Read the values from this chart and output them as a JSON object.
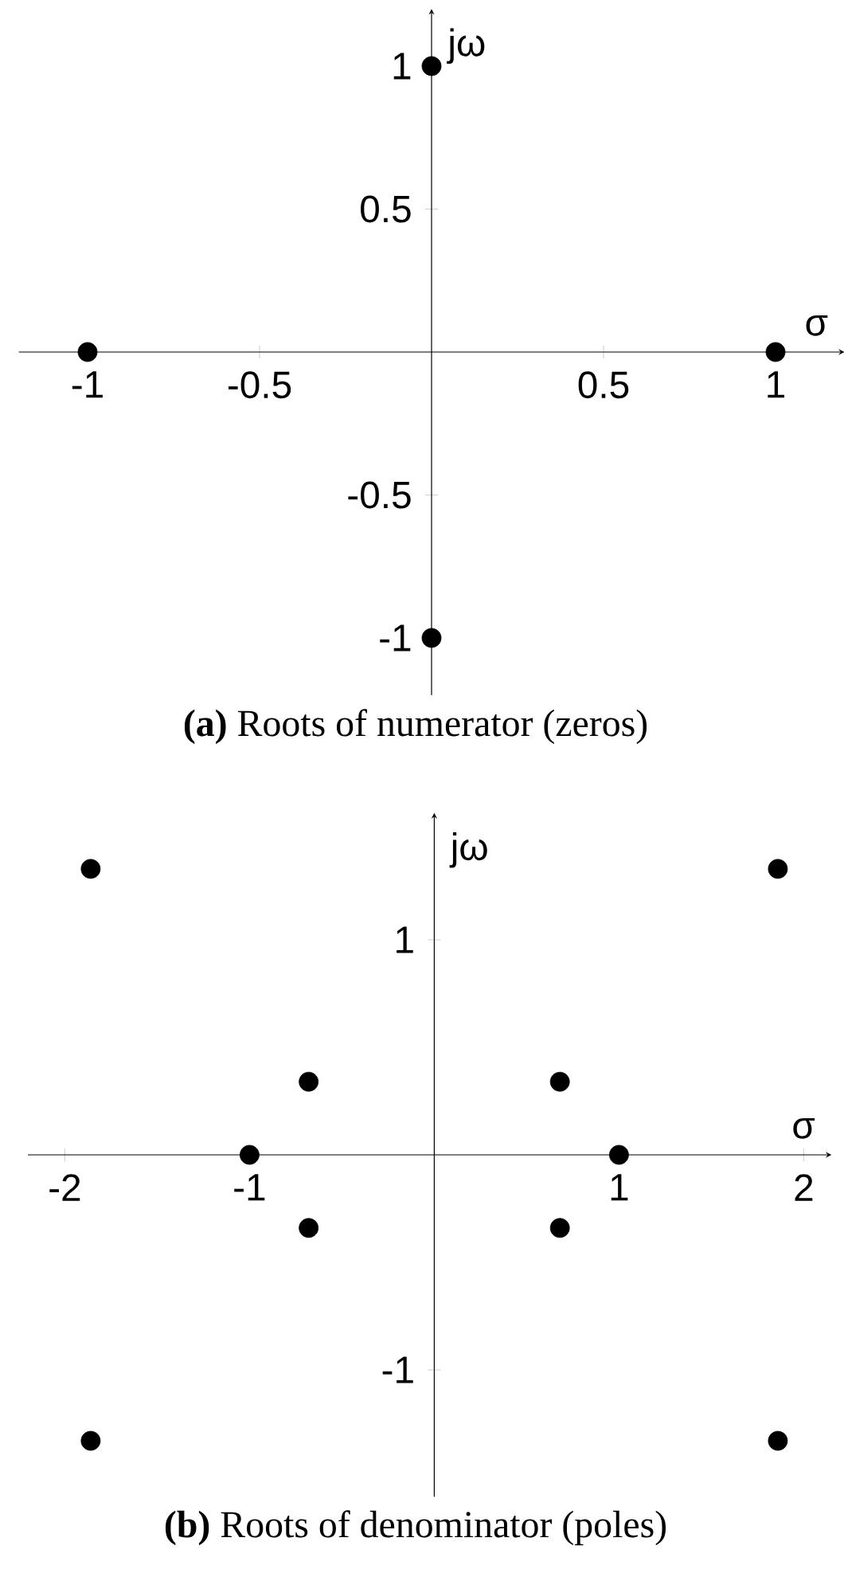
{
  "chart_data": [
    {
      "type": "scatter",
      "xlabel": "σ",
      "ylabel": "jω",
      "annotations": [
        "**(a)** Roots of numerator (zeros)"
      ],
      "x": [
        -1,
        1,
        0,
        0
      ],
      "values": [
        0,
        0,
        1,
        -1
      ],
      "color": "#000000",
      "marker": "circle",
      "xlim": [
        -1.2,
        1.2
      ],
      "ylim": [
        -1.2,
        1.2
      ],
      "xticks": [
        -1,
        -0.5,
        0.5,
        1
      ],
      "yticks": [
        -1,
        -0.5,
        0.5,
        1
      ]
    },
    {
      "type": "scatter",
      "xlabel": "σ",
      "ylabel": "jω",
      "annotations": [
        "**(b)** Roots of denominator (poles)"
      ],
      "x": [
        -1.86,
        -1.86,
        -1,
        -0.68,
        -0.68,
        0.68,
        0.68,
        1,
        1.86,
        1.86
      ],
      "values": [
        1.33,
        -1.33,
        0,
        0.34,
        -0.34,
        0.34,
        -0.34,
        0,
        1.33,
        -1.33
      ],
      "color": "#000000",
      "marker": "circle",
      "xlim": [
        -2.2,
        2.15
      ],
      "ylim": [
        -1.59,
        1.59
      ],
      "xticks": [
        -2,
        -1,
        1,
        2
      ],
      "yticks": [
        -1,
        1
      ]
    }
  ]
}
